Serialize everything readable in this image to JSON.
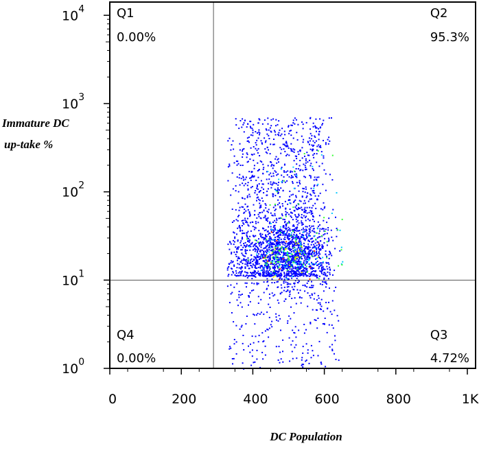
{
  "chart_data": {
    "type": "scatter",
    "xlabel": "DC Population",
    "ylabel_lines": [
      "Immature DC",
      "up-take %"
    ],
    "x_scale": "linear",
    "y_scale": "log",
    "xlim": [
      0,
      1023
    ],
    "ylim_log10": [
      0,
      4.15
    ],
    "x_ticks": [
      {
        "value": 0,
        "label": "0"
      },
      {
        "value": 200,
        "label": "200"
      },
      {
        "value": 400,
        "label": "400"
      },
      {
        "value": 600,
        "label": "600"
      },
      {
        "value": 800,
        "label": "800"
      },
      {
        "value": 1000,
        "label": "1K"
      }
    ],
    "y_ticks": [
      {
        "exp": 0,
        "base": "10",
        "sup": "0"
      },
      {
        "exp": 1,
        "base": "10",
        "sup": "1"
      },
      {
        "exp": 2,
        "base": "10",
        "sup": "2"
      },
      {
        "exp": 3,
        "base": "10",
        "sup": "3"
      },
      {
        "exp": 4,
        "base": "10",
        "sup": "4"
      }
    ],
    "quadrant_gate": {
      "x": 290,
      "y": 10
    },
    "quadrants": [
      {
        "id": "Q1",
        "name": "Q1",
        "percent": "0.00%",
        "corner": "top-left"
      },
      {
        "id": "Q2",
        "name": "Q2",
        "percent": "95.3%",
        "corner": "top-right"
      },
      {
        "id": "Q3",
        "name": "Q3",
        "percent": "4.72%",
        "corner": "bottom-right"
      },
      {
        "id": "Q4",
        "name": "Q4",
        "percent": "0.00%",
        "corner": "bottom-left"
      }
    ],
    "density_colors": [
      "#0000ff",
      "#00c8ff",
      "#32ff32",
      "#ffff00",
      "#ff3200"
    ],
    "population": {
      "x_range": [
        325,
        650
      ],
      "upper_cluster": {
        "x_center": 470,
        "x_spread": 95,
        "log10y_range": [
          1.05,
          2.85
        ]
      },
      "dense_core": {
        "x_center": 495,
        "y_center": 20,
        "log10y_spread": 0.12
      },
      "lower_tail": {
        "x_range": [
          330,
          640
        ],
        "log10y_range": [
          0.0,
          0.98
        ]
      }
    },
    "grid": false,
    "legend": "none"
  }
}
